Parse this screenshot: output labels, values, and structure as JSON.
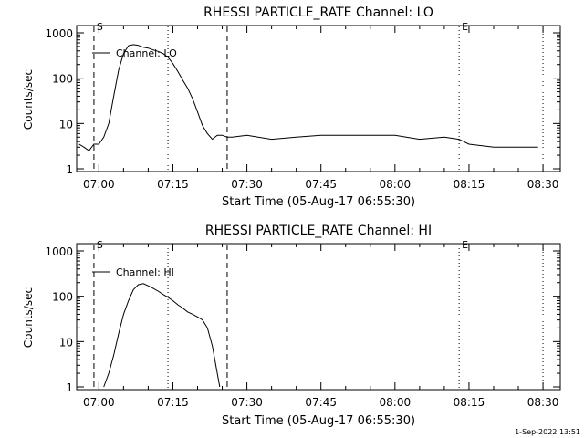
{
  "footer_timestamp": "1-Sep-2022 13:51",
  "chart_data": [
    {
      "type": "line",
      "title": "RHESSI PARTICLE_RATE Channel: LO",
      "xlabel": "Start Time (05-Aug-17 06:55:30)",
      "ylabel": "Counts/sec",
      "yscale": "log",
      "ylim": [
        1,
        1000
      ],
      "xlim_minutes": [
        0,
        38
      ],
      "xticks": [
        "07:00",
        "07:15",
        "07:30",
        "07:45",
        "08:00",
        "08:15",
        "08:30"
      ],
      "yticks": [
        "1",
        "10",
        "100",
        "1000"
      ],
      "legend": "Channel: LO",
      "markers": [
        {
          "label": "S",
          "time": "06:59",
          "style": "dashed"
        },
        {
          "label": "",
          "time": "07:14",
          "style": "dotted"
        },
        {
          "label": "",
          "time": "07:26",
          "style": "dashed"
        },
        {
          "label": "E",
          "time": "08:13",
          "style": "dotted"
        },
        {
          "label": "",
          "time": "08:30",
          "style": "dotted"
        }
      ],
      "series": [
        {
          "name": "Channel: LO",
          "x": [
            "06:56",
            "06:57",
            "06:58",
            "06:59",
            "07:00",
            "07:01",
            "07:02",
            "07:03",
            "07:04",
            "07:05",
            "07:06",
            "07:07",
            "07:08",
            "07:09",
            "07:10",
            "07:11",
            "07:12",
            "07:13",
            "07:14",
            "07:15",
            "07:16",
            "07:17",
            "07:18",
            "07:19",
            "07:20",
            "07:21",
            "07:22",
            "07:23",
            "07:24",
            "07:25",
            "07:26",
            "07:27",
            "07:30",
            "07:35",
            "07:40",
            "07:45",
            "07:50",
            "07:55",
            "08:00",
            "08:05",
            "08:10",
            "08:13",
            "08:15",
            "08:20",
            "08:25",
            "08:29"
          ],
          "y": [
            3.5,
            3,
            2.5,
            3.5,
            3.5,
            5,
            10,
            40,
            150,
            350,
            520,
            550,
            530,
            480,
            460,
            420,
            390,
            350,
            290,
            210,
            140,
            90,
            60,
            35,
            18,
            9,
            6,
            4.5,
            5.5,
            5.5,
            5,
            5,
            5.5,
            4.5,
            5,
            5.5,
            5.5,
            5.5,
            5.5,
            4.5,
            5,
            4.5,
            3.5,
            3,
            3,
            3
          ]
        }
      ]
    },
    {
      "type": "line",
      "title": "RHESSI PARTICLE_RATE Channel: HI",
      "xlabel": "Start Time (05-Aug-17 06:55:30)",
      "ylabel": "Counts/sec",
      "yscale": "log",
      "ylim": [
        1,
        1000
      ],
      "xticks": [
        "07:00",
        "07:15",
        "07:30",
        "07:45",
        "08:00",
        "08:15",
        "08:30"
      ],
      "yticks": [
        "1",
        "10",
        "100",
        "1000"
      ],
      "legend": "Channel: HI",
      "markers": [
        {
          "label": "S",
          "time": "06:59",
          "style": "dashed"
        },
        {
          "label": "",
          "time": "07:14",
          "style": "dotted"
        },
        {
          "label": "",
          "time": "07:26",
          "style": "dashed"
        },
        {
          "label": "E",
          "time": "08:13",
          "style": "dotted"
        },
        {
          "label": "",
          "time": "08:30",
          "style": "dotted"
        }
      ],
      "series": [
        {
          "name": "Channel: HI",
          "x": [
            "07:01",
            "07:02",
            "07:03",
            "07:04",
            "07:05",
            "07:06",
            "07:07",
            "07:08",
            "07:09",
            "07:10",
            "07:11",
            "07:12",
            "07:13",
            "07:14",
            "07:15",
            "07:16",
            "07:17",
            "07:18",
            "07:19",
            "07:20",
            "07:21",
            "07:22",
            "07:23",
            "07:24",
            "07:24.5"
          ],
          "y": [
            1,
            2,
            5,
            15,
            40,
            80,
            140,
            180,
            190,
            170,
            150,
            130,
            110,
            95,
            80,
            65,
            55,
            45,
            40,
            35,
            30,
            20,
            8,
            2,
            1
          ]
        }
      ]
    }
  ]
}
